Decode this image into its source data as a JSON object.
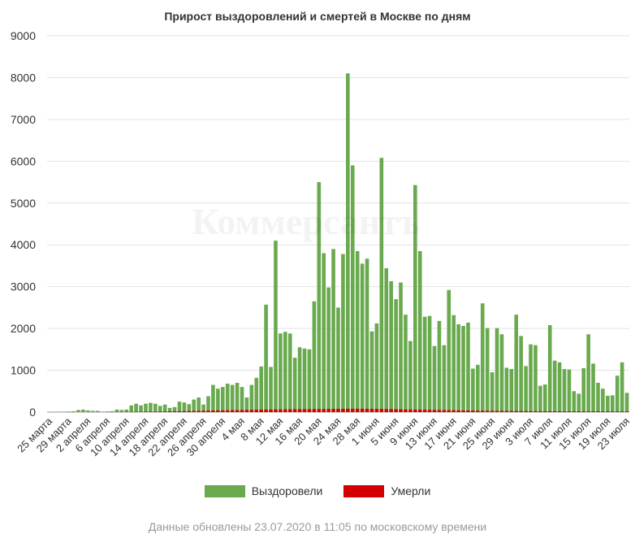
{
  "chart_data": {
    "type": "bar",
    "title": "Прирост выздоровлений и смертей в Москве по дням",
    "xlabel": "",
    "ylabel": "",
    "ylim": [
      0,
      9000
    ],
    "y_ticks": [
      0,
      1000,
      2000,
      3000,
      4000,
      5000,
      6000,
      7000,
      8000,
      9000
    ],
    "grid": true,
    "legend_position": "bottom",
    "categories": [
      "25 марта",
      "26 марта",
      "27 марта",
      "28 марта",
      "29 марта",
      "30 марта",
      "31 марта",
      "1 апреля",
      "2 апреля",
      "3 апреля",
      "4 апреля",
      "5 апреля",
      "6 апреля",
      "7 апреля",
      "8 апреля",
      "9 апреля",
      "10 апреля",
      "11 апреля",
      "12 апреля",
      "13 апреля",
      "14 апреля",
      "15 апреля",
      "16 апреля",
      "17 апреля",
      "18 апреля",
      "19 апреля",
      "20 апреля",
      "21 апреля",
      "22 апреля",
      "23 апреля",
      "24 апреля",
      "25 апреля",
      "26 апреля",
      "27 апреля",
      "28 апреля",
      "29 апреля",
      "30 апреля",
      "1 мая",
      "2 мая",
      "3 мая",
      "4 мая",
      "5 мая",
      "6 мая",
      "7 мая",
      "8 мая",
      "9 мая",
      "10 мая",
      "11 мая",
      "12 мая",
      "13 мая",
      "14 мая",
      "15 мая",
      "16 мая",
      "17 мая",
      "18 мая",
      "19 мая",
      "20 мая",
      "21 мая",
      "22 мая",
      "23 мая",
      "24 мая",
      "25 мая",
      "26 мая",
      "27 мая",
      "28 мая",
      "29 мая",
      "30 мая",
      "31 мая",
      "1 июня",
      "2 июня",
      "3 июня",
      "4 июня",
      "5 июня",
      "6 июня",
      "7 июня",
      "8 июня",
      "9 июня",
      "10 июня",
      "11 июня",
      "12 июня",
      "13 июня",
      "14 июня",
      "15 июня",
      "16 июня",
      "17 июня",
      "18 июня",
      "19 июня",
      "20 июня",
      "21 июня",
      "22 июня",
      "23 июня",
      "24 июня",
      "25 июня",
      "26 июня",
      "27 июня",
      "28 июня",
      "29 июня",
      "30 июня",
      "1 июля",
      "2 июля",
      "3 июля",
      "4 июля",
      "5 июля",
      "6 июля",
      "7 июля",
      "8 июля",
      "9 июля",
      "10 июля",
      "11 июля",
      "12 июля",
      "13 июля",
      "14 июля",
      "15 июля",
      "16 июля",
      "17 июля",
      "18 июля",
      "19 июля",
      "20 июля",
      "21 июля",
      "22 июля",
      "23 июля"
    ],
    "x_tick_labels": [
      "25 марта",
      "29 марта",
      "2 апреля",
      "6 апреля",
      "10 апреля",
      "14 апреля",
      "18 апреля",
      "22 апреля",
      "26 апреля",
      "30 апреля",
      "4 мая",
      "8 мая",
      "12 мая",
      "16 мая",
      "20 мая",
      "24 мая",
      "28 мая",
      "1 июня",
      "5 июня",
      "9 июня",
      "13 июня",
      "17 июня",
      "21 июня",
      "25 июня",
      "29 июня",
      "3 июля",
      "7 июля",
      "11 июля",
      "15 июля",
      "19 июля",
      "23 июля"
    ],
    "series": [
      {
        "name": "Выздоровели",
        "color": "#6aaa4f",
        "values": [
          5,
          2,
          8,
          10,
          15,
          20,
          50,
          60,
          40,
          30,
          30,
          10,
          15,
          20,
          60,
          50,
          60,
          160,
          200,
          160,
          200,
          220,
          200,
          150,
          180,
          100,
          120,
          250,
          230,
          190,
          300,
          350,
          180,
          380,
          650,
          560,
          600,
          680,
          650,
          700,
          600,
          350,
          650,
          820,
          1090,
          2570,
          1080,
          4100,
          1880,
          1920,
          1880,
          1300,
          1550,
          1520,
          1500,
          2650,
          5500,
          3800,
          2980,
          3900,
          2500,
          3780,
          8100,
          5900,
          3850,
          3550,
          3670,
          1930,
          2120,
          6080,
          3440,
          3130,
          2700,
          3100,
          2330,
          1700,
          5430,
          3850,
          2280,
          2300,
          1580,
          2180,
          1600,
          2920,
          2320,
          2100,
          2060,
          2140,
          1040,
          1130,
          2600,
          2010,
          950,
          2010,
          1860,
          1060,
          1030,
          2330,
          1820,
          1100,
          1620,
          1600,
          630,
          660,
          2080,
          1230,
          1190,
          1030,
          1020,
          500,
          440,
          1050,
          1860,
          1160,
          700,
          560,
          390,
          400,
          870,
          1190,
          460
        ]
      },
      {
        "name": "Умерли",
        "color": "#d40000",
        "values": [
          0,
          0,
          0,
          0,
          0,
          0,
          0,
          0,
          0,
          1,
          1,
          2,
          2,
          3,
          4,
          4,
          5,
          6,
          7,
          9,
          10,
          12,
          13,
          15,
          16,
          18,
          20,
          22,
          24,
          26,
          28,
          30,
          32,
          35,
          38,
          40,
          42,
          44,
          46,
          48,
          50,
          52,
          54,
          56,
          58,
          60,
          62,
          64,
          65,
          66,
          67,
          68,
          69,
          70,
          71,
          72,
          73,
          74,
          75,
          76,
          77,
          78,
          79,
          80,
          80,
          79,
          78,
          76,
          75,
          74,
          72,
          70,
          68,
          66,
          64,
          62,
          60,
          58,
          56,
          54,
          52,
          50,
          48,
          46,
          44,
          42,
          40,
          38,
          36,
          34,
          33,
          32,
          31,
          30,
          29,
          28,
          27,
          26,
          25,
          24,
          23,
          22,
          22,
          21,
          21,
          20,
          20,
          19,
          19,
          18,
          18,
          18,
          17,
          17,
          17,
          16,
          16,
          16,
          16,
          15,
          15
        ]
      }
    ]
  },
  "watermark": "Коммерсантъ",
  "footer": {
    "updated": "Данные обновлены 23.07.2020 в 11:05 по московскому времени"
  }
}
